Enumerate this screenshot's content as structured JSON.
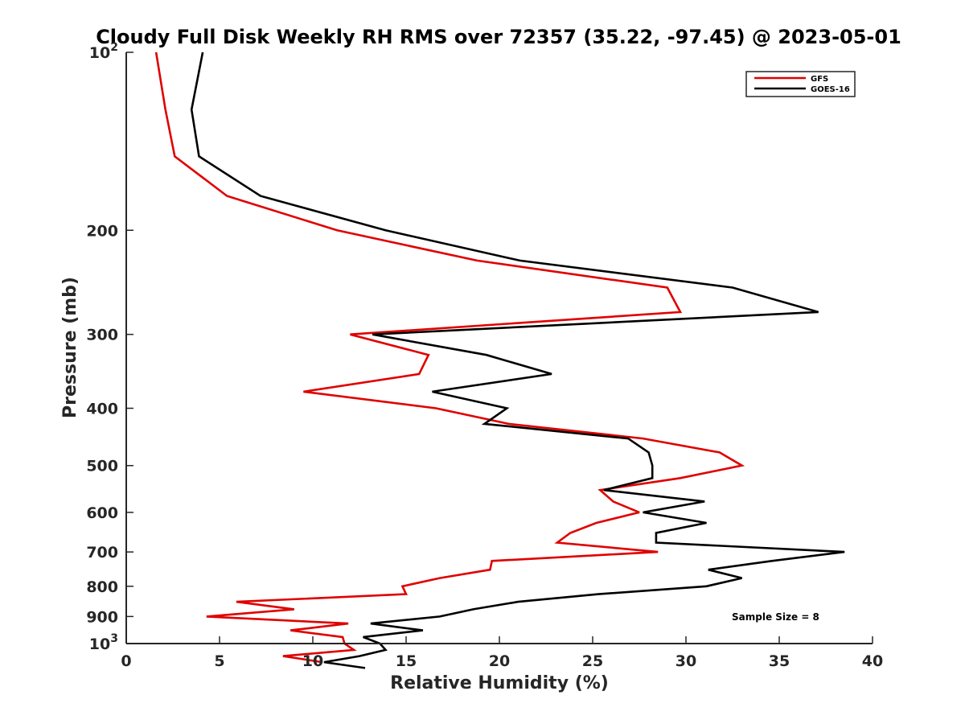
{
  "chart_data": {
    "type": "line",
    "title": "Cloudy Full Disk Weekly RH RMS over 72357 (35.22, -97.45) @ 2023-05-01",
    "xlabel": "Relative Humidity (%)",
    "ylabel": "Pressure (mb)",
    "xlim": [
      0,
      40
    ],
    "ylim": [
      100,
      1000
    ],
    "y_scale": "log",
    "y_reversed": true,
    "x_ticks": [
      "0",
      "5",
      "10",
      "15",
      "20",
      "25",
      "30",
      "35",
      "40"
    ],
    "y_ticks": [
      {
        "value": 100,
        "base": "10",
        "exp": "2",
        "label": ""
      },
      {
        "value": 200,
        "base": "",
        "exp": "",
        "label": "200"
      },
      {
        "value": 300,
        "base": "",
        "exp": "",
        "label": "300"
      },
      {
        "value": 400,
        "base": "",
        "exp": "",
        "label": "400"
      },
      {
        "value": 500,
        "base": "",
        "exp": "",
        "label": "500"
      },
      {
        "value": 600,
        "base": "",
        "exp": "",
        "label": "600"
      },
      {
        "value": 700,
        "base": "",
        "exp": "",
        "label": "700"
      },
      {
        "value": 800,
        "base": "",
        "exp": "",
        "label": "800"
      },
      {
        "value": 900,
        "base": "",
        "exp": "",
        "label": "900"
      },
      {
        "value": 1000,
        "base": "10",
        "exp": "3",
        "label": ""
      }
    ],
    "grid": false,
    "legend_position": "top-right",
    "annotation": "Sample Size = 8",
    "series": [
      {
        "name": "GFS",
        "color": "#e00000",
        "points": [
          [
            1.6,
            100
          ],
          [
            2.1,
            125
          ],
          [
            2.6,
            150
          ],
          [
            5.4,
            175
          ],
          [
            11.3,
            200
          ],
          [
            18.8,
            225
          ],
          [
            29.0,
            250
          ],
          [
            29.7,
            275
          ],
          [
            12.0,
            300
          ],
          [
            16.2,
            325
          ],
          [
            15.7,
            350
          ],
          [
            9.5,
            375
          ],
          [
            16.6,
            400
          ],
          [
            20.5,
            425
          ],
          [
            27.7,
            450
          ],
          [
            31.8,
            475
          ],
          [
            33.0,
            500
          ],
          [
            29.7,
            525
          ],
          [
            25.4,
            550
          ],
          [
            26.1,
            575
          ],
          [
            27.5,
            600
          ],
          [
            25.2,
            625
          ],
          [
            23.8,
            650
          ],
          [
            23.1,
            675
          ],
          [
            28.5,
            700
          ],
          [
            19.6,
            725
          ],
          [
            19.5,
            750
          ],
          [
            16.8,
            775
          ],
          [
            14.8,
            800
          ],
          [
            15.0,
            825
          ],
          [
            5.9,
            850
          ],
          [
            9.0,
            875
          ],
          [
            4.3,
            900
          ],
          [
            11.9,
            925
          ],
          [
            8.8,
            950
          ],
          [
            11.6,
            975
          ],
          [
            11.7,
            1000
          ],
          [
            12.2,
            1025
          ],
          [
            8.4,
            1050
          ],
          [
            10.5,
            1075
          ]
        ]
      },
      {
        "name": "GOES-16",
        "color": "#000000",
        "points": [
          [
            4.1,
            100
          ],
          [
            3.5,
            125
          ],
          [
            3.9,
            150
          ],
          [
            7.2,
            175
          ],
          [
            13.9,
            200
          ],
          [
            21.1,
            225
          ],
          [
            32.5,
            250
          ],
          [
            37.1,
            275
          ],
          [
            13.2,
            300
          ],
          [
            19.3,
            325
          ],
          [
            22.8,
            350
          ],
          [
            16.4,
            375
          ],
          [
            20.4,
            400
          ],
          [
            19.2,
            425
          ],
          [
            26.9,
            450
          ],
          [
            28.0,
            475
          ],
          [
            28.2,
            500
          ],
          [
            28.2,
            525
          ],
          [
            25.6,
            550
          ],
          [
            31.0,
            575
          ],
          [
            27.7,
            600
          ],
          [
            31.1,
            625
          ],
          [
            28.4,
            650
          ],
          [
            28.4,
            675
          ],
          [
            38.5,
            700
          ],
          [
            34.6,
            725
          ],
          [
            31.2,
            750
          ],
          [
            33.0,
            775
          ],
          [
            31.1,
            800
          ],
          [
            25.3,
            825
          ],
          [
            21.0,
            850
          ],
          [
            18.6,
            875
          ],
          [
            16.8,
            900
          ],
          [
            13.1,
            925
          ],
          [
            15.9,
            950
          ],
          [
            12.7,
            975
          ],
          [
            13.6,
            1000
          ],
          [
            13.9,
            1025
          ],
          [
            12.5,
            1050
          ],
          [
            10.6,
            1075
          ],
          [
            12.8,
            1100
          ]
        ]
      }
    ]
  }
}
